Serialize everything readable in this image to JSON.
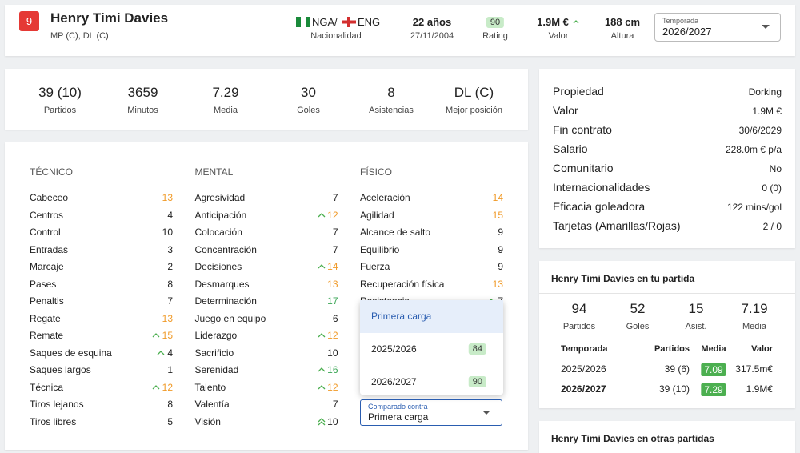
{
  "header": {
    "number": "9",
    "name": "Henry Timi Davies",
    "positions": "MP (C), DL (C)",
    "nationality": {
      "first": "NGA",
      "separator": "/",
      "second": "ENG",
      "label": "Nacionalidad"
    },
    "age": "22 años",
    "dob": "27/11/2004",
    "rating": "90",
    "rating_label": "Rating",
    "value": "1.9M €",
    "value_label": "Valor",
    "height": "188 cm",
    "height_label": "Altura",
    "season_label": "Temporada",
    "season": "2026/2027"
  },
  "stats": [
    {
      "value": "39 (10)",
      "label": "Partidos"
    },
    {
      "value": "3659",
      "label": "Minutos"
    },
    {
      "value": "7.29",
      "label": "Media"
    },
    {
      "value": "30",
      "label": "Goles"
    },
    {
      "value": "8",
      "label": "Asistencias"
    },
    {
      "value": "DL (C)",
      "label": "Mejor posición"
    }
  ],
  "attributes": [
    {
      "title": "TÉCNICO",
      "rows": [
        {
          "name": "Cabeceo",
          "value": 13
        },
        {
          "name": "Centros",
          "value": 4
        },
        {
          "name": "Control",
          "value": 10
        },
        {
          "name": "Entradas",
          "value": 3
        },
        {
          "name": "Marcaje",
          "value": 2
        },
        {
          "name": "Pases",
          "value": 8
        },
        {
          "name": "Penaltis",
          "value": 7
        },
        {
          "name": "Regate",
          "value": 13
        },
        {
          "name": "Remate",
          "value": 15,
          "trend": "up"
        },
        {
          "name": "Saques de esquina",
          "value": 4,
          "trend": "up"
        },
        {
          "name": "Saques largos",
          "value": 1
        },
        {
          "name": "Técnica",
          "value": 12,
          "trend": "up"
        },
        {
          "name": "Tiros lejanos",
          "value": 8
        },
        {
          "name": "Tiros libres",
          "value": 5
        }
      ]
    },
    {
      "title": "MENTAL",
      "rows": [
        {
          "name": "Agresividad",
          "value": 7
        },
        {
          "name": "Anticipación",
          "value": 12,
          "trend": "up"
        },
        {
          "name": "Colocación",
          "value": 7
        },
        {
          "name": "Concentración",
          "value": 7
        },
        {
          "name": "Decisiones",
          "value": 14,
          "trend": "up"
        },
        {
          "name": "Desmarques",
          "value": 13
        },
        {
          "name": "Determinación",
          "value": 17
        },
        {
          "name": "Juego en equipo",
          "value": 6
        },
        {
          "name": "Liderazgo",
          "value": 12,
          "trend": "up"
        },
        {
          "name": "Sacrificio",
          "value": 10
        },
        {
          "name": "Serenidad",
          "value": 16,
          "trend": "up"
        },
        {
          "name": "Talento",
          "value": 12,
          "trend": "up"
        },
        {
          "name": "Valentía",
          "value": 7
        },
        {
          "name": "Visión",
          "value": 10,
          "trend": "double-up"
        }
      ]
    },
    {
      "title": "FÍSICO",
      "rows": [
        {
          "name": "Aceleración",
          "value": 14
        },
        {
          "name": "Agilidad",
          "value": 15
        },
        {
          "name": "Alcance de salto",
          "value": 9
        },
        {
          "name": "Equilibrio",
          "value": 9
        },
        {
          "name": "Fuerza",
          "value": 9
        },
        {
          "name": "Recuperación física",
          "value": 13
        },
        {
          "name": "Resistencia",
          "value": 7,
          "trend": "up"
        }
      ]
    }
  ],
  "compare": {
    "options": [
      {
        "label": "Primera carga"
      },
      {
        "label": "2025/2026",
        "rating": "84"
      },
      {
        "label": "2026/2027",
        "rating": "90"
      }
    ],
    "field_label": "Comparado contra",
    "selected": "Primera carga"
  },
  "details": [
    [
      "Propiedad",
      "Dorking"
    ],
    [
      "Valor",
      "1.9M €"
    ],
    [
      "Fin contrato",
      "30/6/2029"
    ],
    [
      "Salario",
      "228.0m € p/a"
    ],
    [
      "Comunitario",
      "No"
    ],
    [
      "Internacionalidades",
      "0 (0)"
    ],
    [
      "Eficacia goleadora",
      "122 mins/gol"
    ],
    [
      "Tarjetas (Amarillas/Rojas)",
      "2 / 0"
    ]
  ],
  "save": {
    "title": "Henry Timi Davies en tu partida",
    "stats": [
      {
        "value": "94",
        "label": "Partidos"
      },
      {
        "value": "52",
        "label": "Goles"
      },
      {
        "value": "15",
        "label": "Asist."
      },
      {
        "value": "7.19",
        "label": "Media"
      }
    ],
    "columns": [
      "Temporada",
      "Partidos",
      "Media",
      "Valor"
    ],
    "rows": [
      [
        "2025/2026",
        "39 (6)",
        "7.09",
        "317.5m€"
      ],
      [
        "2026/2027",
        "39 (10)",
        "7.29",
        "1.9M€"
      ]
    ]
  },
  "other": {
    "title": "Henry Timi Davies en otras partidas"
  }
}
